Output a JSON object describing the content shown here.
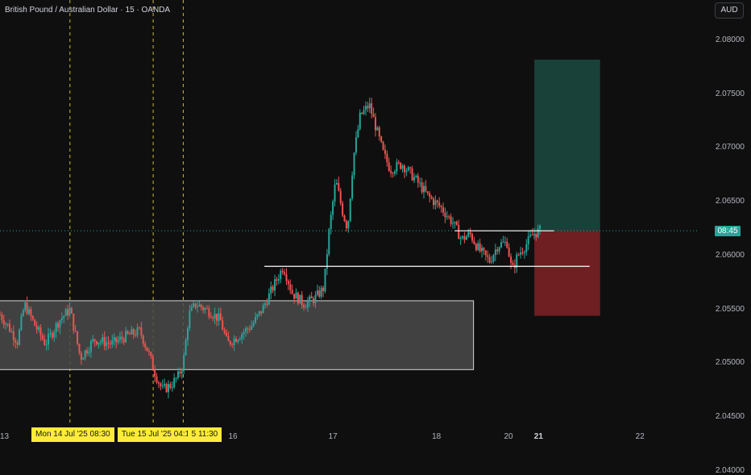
{
  "header": {
    "symbol_title": "British Pound / Australian Dollar · 15 · OANDA"
  },
  "currency_button": {
    "label": "AUD"
  },
  "colors": {
    "background": "#0f0f0f",
    "up": "#26a69a",
    "down": "#ef5350",
    "grid_line_color": "#2a2e39",
    "session_line_color": "#f5e342",
    "profit_zone": "#1b4d44",
    "loss_zone": "#7a2025",
    "range_box": "#4a4a4a",
    "flag_bg": "#ffeb3b"
  },
  "current_price": {
    "label": "08:45",
    "value": 2.0623
  },
  "x_axis_labels": [
    {
      "text": "13",
      "pos": 0.0,
      "bold": false
    },
    {
      "text": "16",
      "pos": 0.333,
      "bold": false
    },
    {
      "text": "17",
      "pos": 0.476,
      "bold": false
    },
    {
      "text": "18",
      "pos": 0.624,
      "bold": false
    },
    {
      "text": "20",
      "pos": 0.727,
      "bold": false
    },
    {
      "text": "21",
      "pos": 0.77,
      "bold": true
    },
    {
      "text": "22",
      "pos": 0.915,
      "bold": false
    }
  ],
  "time_flags": [
    {
      "text": "Mon 14 Jul '25   08:30",
      "pos": 0.045
    },
    {
      "text": "Tue 15 Jul '25   04:15",
      "pos": 0.168
    },
    {
      "text": "5   11:30",
      "pos": 0.268
    }
  ],
  "chart_data": {
    "type": "candlestick",
    "title": "British Pound / Australian Dollar · 15 · OANDA",
    "y_axis": {
      "ticks": [
        "2.08000",
        "2.07500",
        "2.07000",
        "2.06500",
        "2.06000",
        "2.05500",
        "2.05000",
        "2.04500",
        "2.04000"
      ],
      "range": [
        2.0365,
        2.0835
      ]
    },
    "vertical_markers": [
      {
        "pos": 0.1,
        "style": "dashed"
      },
      {
        "pos": 0.219,
        "style": "dashed"
      },
      {
        "pos": 0.262,
        "style": "dashed"
      }
    ],
    "range_box": {
      "x_start": 0.0,
      "x_end": 0.677,
      "y_high": 2.0558,
      "y_low": 2.0494
    },
    "horizontal_lines": [
      {
        "x_start": 0.378,
        "x_end": 0.843,
        "y": 2.059
      },
      {
        "x_start": 0.65,
        "x_end": 0.792,
        "y": 2.0623
      }
    ],
    "position": {
      "x_start": 0.764,
      "x_end": 0.858,
      "entry": 2.0623,
      "target": 2.0782,
      "stop": 2.0544
    },
    "price_path": [
      [
        0.0,
        2.0545
      ],
      [
        0.01,
        2.0536
      ],
      [
        0.025,
        2.052
      ],
      [
        0.035,
        2.0555
      ],
      [
        0.05,
        2.0535
      ],
      [
        0.065,
        2.0518
      ],
      [
        0.085,
        2.054
      ],
      [
        0.1,
        2.055
      ],
      [
        0.115,
        2.0505
      ],
      [
        0.135,
        2.0522
      ],
      [
        0.16,
        2.0518
      ],
      [
        0.18,
        2.0525
      ],
      [
        0.2,
        2.053
      ],
      [
        0.212,
        2.051
      ],
      [
        0.222,
        2.049
      ],
      [
        0.232,
        2.0475
      ],
      [
        0.245,
        2.048
      ],
      [
        0.255,
        2.0488
      ],
      [
        0.262,
        2.05
      ],
      [
        0.27,
        2.0545
      ],
      [
        0.28,
        2.0555
      ],
      [
        0.3,
        2.0548
      ],
      [
        0.315,
        2.054
      ],
      [
        0.325,
        2.0518
      ],
      [
        0.34,
        2.0525
      ],
      [
        0.36,
        2.0535
      ],
      [
        0.375,
        2.055
      ],
      [
        0.39,
        2.057
      ],
      [
        0.405,
        2.059
      ],
      [
        0.418,
        2.0565
      ],
      [
        0.435,
        2.0555
      ],
      [
        0.45,
        2.056
      ],
      [
        0.463,
        2.057
      ],
      [
        0.47,
        2.062
      ],
      [
        0.48,
        2.067
      ],
      [
        0.49,
        2.064
      ],
      [
        0.497,
        2.0625
      ],
      [
        0.505,
        2.069
      ],
      [
        0.515,
        2.073
      ],
      [
        0.528,
        2.074
      ],
      [
        0.537,
        2.072
      ],
      [
        0.548,
        2.0695
      ],
      [
        0.558,
        2.068
      ],
      [
        0.575,
        2.0685
      ],
      [
        0.595,
        2.067
      ],
      [
        0.612,
        2.0655
      ],
      [
        0.63,
        2.0645
      ],
      [
        0.648,
        2.063
      ],
      [
        0.66,
        2.0615
      ],
      [
        0.672,
        2.062
      ],
      [
        0.685,
        2.0605
      ],
      [
        0.7,
        2.0595
      ],
      [
        0.712,
        2.061
      ],
      [
        0.725,
        2.0612
      ],
      [
        0.732,
        2.0585
      ],
      [
        0.74,
        2.06
      ],
      [
        0.752,
        2.061
      ],
      [
        0.762,
        2.062
      ],
      [
        0.772,
        2.0623
      ]
    ]
  }
}
